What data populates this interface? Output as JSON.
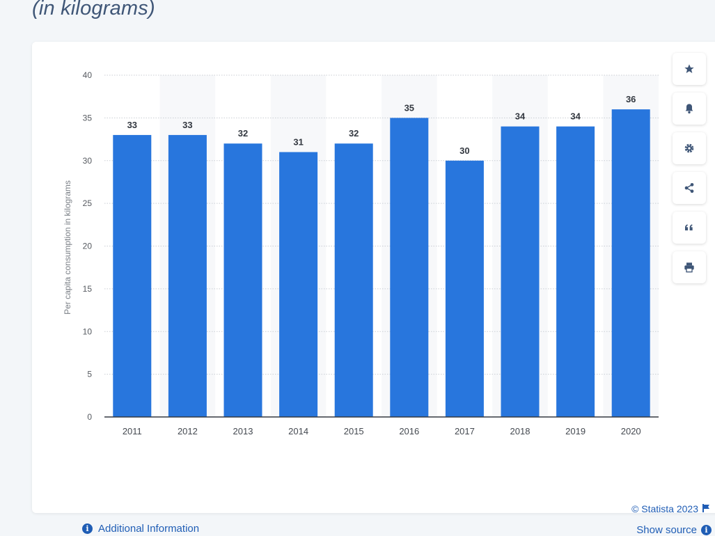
{
  "header": {
    "subtitle": "(in kilograms)"
  },
  "chart_data": {
    "type": "bar",
    "categories": [
      "2011",
      "2012",
      "2013",
      "2014",
      "2015",
      "2016",
      "2017",
      "2018",
      "2019",
      "2020"
    ],
    "values": [
      33,
      33,
      32,
      31,
      32,
      35,
      30,
      34,
      34,
      36
    ],
    "ylabel": "Per capita consumption in kilograms",
    "xlabel": "",
    "ylim": [
      0,
      40
    ],
    "yticks": [
      0,
      5,
      10,
      15,
      20,
      25,
      30,
      35,
      40
    ],
    "grid": true,
    "data_labels": true,
    "bar_color": "#2876dd"
  },
  "toolbar": {
    "buttons": [
      {
        "name": "star-icon",
        "label": "Favorite"
      },
      {
        "name": "bell-icon",
        "label": "Notification"
      },
      {
        "name": "gear-icon",
        "label": "Settings"
      },
      {
        "name": "share-icon",
        "label": "Share"
      },
      {
        "name": "quote-icon",
        "label": "Cite"
      },
      {
        "name": "print-icon",
        "label": "Print"
      }
    ]
  },
  "footer": {
    "credit": "© Statista 2023",
    "show_source": "Show source",
    "additional_info": "Additional Information"
  },
  "colors": {
    "accent": "#1f5db5",
    "bar": "#2876dd",
    "icon": "#3f5677"
  }
}
